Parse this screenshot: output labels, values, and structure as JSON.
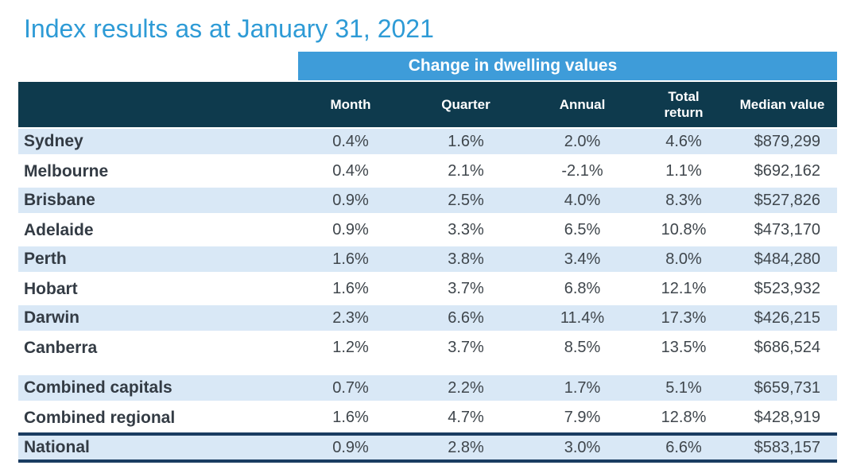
{
  "title": "Index results as at January 31, 2021",
  "table": {
    "banner": "Change in dwelling values",
    "columns": [
      "Month",
      "Quarter",
      "Annual",
      "Total return",
      "Median value"
    ],
    "rows": [
      {
        "label": "Sydney",
        "month": "0.4%",
        "quarter": "1.6%",
        "annual": "2.0%",
        "total_return": "4.6%",
        "median_value": "$879,299"
      },
      {
        "label": "Melbourne",
        "month": "0.4%",
        "quarter": "2.1%",
        "annual": "-2.1%",
        "total_return": "1.1%",
        "median_value": "$692,162"
      },
      {
        "label": "Brisbane",
        "month": "0.9%",
        "quarter": "2.5%",
        "annual": "4.0%",
        "total_return": "8.3%",
        "median_value": "$527,826"
      },
      {
        "label": "Adelaide",
        "month": "0.9%",
        "quarter": "3.3%",
        "annual": "6.5%",
        "total_return": "10.8%",
        "median_value": "$473,170"
      },
      {
        "label": "Perth",
        "month": "1.6%",
        "quarter": "3.8%",
        "annual": "3.4%",
        "total_return": "8.0%",
        "median_value": "$484,280"
      },
      {
        "label": "Hobart",
        "month": "1.6%",
        "quarter": "3.7%",
        "annual": "6.8%",
        "total_return": "12.1%",
        "median_value": "$523,932"
      },
      {
        "label": "Darwin",
        "month": "2.3%",
        "quarter": "6.6%",
        "annual": "11.4%",
        "total_return": "17.3%",
        "median_value": "$426,215"
      },
      {
        "label": "Canberra",
        "month": "1.2%",
        "quarter": "3.7%",
        "annual": "8.5%",
        "total_return": "13.5%",
        "median_value": "$686,524"
      },
      {
        "label": "Combined capitals",
        "month": "0.7%",
        "quarter": "2.2%",
        "annual": "1.7%",
        "total_return": "5.1%",
        "median_value": "$659,731"
      },
      {
        "label": "Combined regional",
        "month": "1.6%",
        "quarter": "4.7%",
        "annual": "7.9%",
        "total_return": "12.8%",
        "median_value": "$428,919"
      },
      {
        "label": "National",
        "month": "0.9%",
        "quarter": "2.8%",
        "annual": "3.0%",
        "total_return": "6.6%",
        "median_value": "$583,157"
      }
    ]
  },
  "colors": {
    "title_blue": "#2e9bd6",
    "banner_blue": "#3e9cd9",
    "header_teal": "#0e3a4d",
    "row_stripe": "#d9e8f6",
    "national_border": "#1a3c61"
  }
}
